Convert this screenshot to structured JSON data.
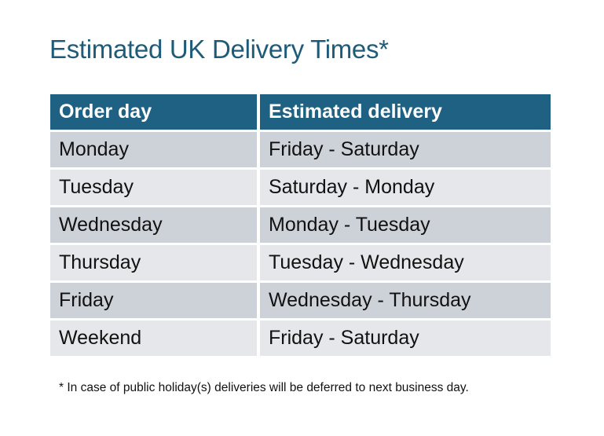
{
  "title": "Estimated UK Delivery Times*",
  "table": {
    "headers": [
      "Order day",
      "Estimated delivery"
    ],
    "rows": [
      [
        "Monday",
        "Friday - Saturday"
      ],
      [
        "Tuesday",
        "Saturday - Monday"
      ],
      [
        "Wednesday",
        "Monday - Tuesday"
      ],
      [
        "Thursday",
        "Tuesday - Wednesday"
      ],
      [
        "Friday",
        "Wednesday - Thursday"
      ],
      [
        "Weekend",
        "Friday - Saturday"
      ]
    ]
  },
  "footnote": "* In case of public holiday(s) deliveries will be deferred to next business day.",
  "colors": {
    "header": "#1f6183",
    "title": "#1d5b79",
    "row_odd": "#cdd1d8",
    "row_even": "#e5e7ea"
  }
}
